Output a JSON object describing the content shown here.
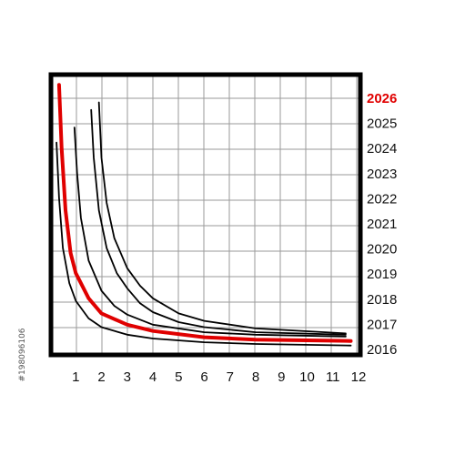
{
  "chart_data": {
    "type": "line",
    "x_ticks": [
      "1",
      "2",
      "3",
      "4",
      "5",
      "6",
      "7",
      "8",
      "9",
      "10",
      "11",
      "12"
    ],
    "y_ticks": [
      "2016",
      "2017",
      "2018",
      "2019",
      "2020",
      "2021",
      "2022",
      "2023",
      "2024",
      "2025",
      "2026"
    ],
    "highlight_tick": "2026",
    "xlim": [
      0,
      12
    ],
    "ylim": [
      2016,
      2026
    ],
    "grid": true,
    "series": [
      {
        "color": "#000000",
        "points": [
          [
            0.25,
            2024.2
          ],
          [
            0.35,
            2022
          ],
          [
            0.5,
            2020
          ],
          [
            0.75,
            2018.6
          ],
          [
            1,
            2017.9
          ],
          [
            1.5,
            2017.2
          ],
          [
            2,
            2016.85
          ],
          [
            3,
            2016.55
          ],
          [
            4,
            2016.4
          ],
          [
            6,
            2016.25
          ],
          [
            8,
            2016.18
          ],
          [
            11.7,
            2016.12
          ]
        ]
      },
      {
        "color": "#e00000",
        "points": [
          [
            0.35,
            2026.5
          ],
          [
            0.45,
            2024
          ],
          [
            0.6,
            2021.5
          ],
          [
            0.8,
            2019.8
          ],
          [
            1,
            2019
          ],
          [
            1.5,
            2018
          ],
          [
            2,
            2017.4
          ],
          [
            3,
            2016.95
          ],
          [
            4,
            2016.7
          ],
          [
            6,
            2016.45
          ],
          [
            8,
            2016.35
          ],
          [
            11.7,
            2016.3
          ]
        ]
      },
      {
        "color": "#000000",
        "points": [
          [
            0.95,
            2024.8
          ],
          [
            1.05,
            2023
          ],
          [
            1.2,
            2021.2
          ],
          [
            1.5,
            2019.5
          ],
          [
            2,
            2018.3
          ],
          [
            2.5,
            2017.7
          ],
          [
            3,
            2017.35
          ],
          [
            4,
            2016.95
          ],
          [
            6,
            2016.65
          ],
          [
            8,
            2016.55
          ],
          [
            11.5,
            2016.48
          ]
        ]
      },
      {
        "color": "#000000",
        "points": [
          [
            1.6,
            2025.5
          ],
          [
            1.7,
            2023.6
          ],
          [
            1.9,
            2021.5
          ],
          [
            2.2,
            2020
          ],
          [
            2.6,
            2019
          ],
          [
            3,
            2018.4
          ],
          [
            3.5,
            2017.8
          ],
          [
            4,
            2017.45
          ],
          [
            5,
            2017.05
          ],
          [
            6,
            2016.85
          ],
          [
            8,
            2016.65
          ],
          [
            11.5,
            2016.55
          ]
        ]
      },
      {
        "color": "#000000",
        "points": [
          [
            1.9,
            2025.8
          ],
          [
            2,
            2023.6
          ],
          [
            2.2,
            2021.8
          ],
          [
            2.5,
            2020.4
          ],
          [
            3,
            2019.2
          ],
          [
            3.5,
            2018.5
          ],
          [
            4,
            2018
          ],
          [
            5,
            2017.4
          ],
          [
            6,
            2017.1
          ],
          [
            8,
            2016.8
          ],
          [
            11.5,
            2016.6
          ]
        ]
      }
    ]
  },
  "side_code": "#198096106"
}
